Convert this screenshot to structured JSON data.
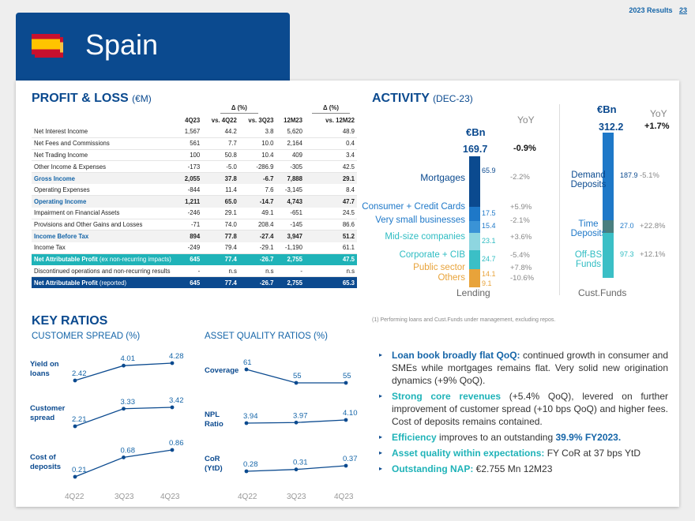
{
  "header": {
    "report": "2023 Results",
    "page": "23"
  },
  "title": "Spain",
  "colors": {
    "dark_blue": "#0b4a8f",
    "teal": "#1fb3b8",
    "mid_blue": "#1565a8",
    "light_blue": "#1e78c8",
    "orange": "#e8a33a"
  },
  "pl": {
    "title": "PROFIT & LOSS",
    "unit": "(€M)",
    "delta_labels": [
      "Δ (%)",
      "Δ (%)"
    ],
    "columns": [
      "4Q23",
      "vs. 4Q22",
      "vs. 3Q23",
      "12M23",
      "vs. 12M22"
    ],
    "rows": [
      {
        "label": "Net Interest Income",
        "v": [
          "1,567",
          "44.2",
          "3.8",
          "5,620",
          "48.9"
        ],
        "style": "row"
      },
      {
        "label": "Net Fees and Commissions",
        "v": [
          "561",
          "7.7",
          "10.0",
          "2,164",
          "0.4"
        ],
        "style": "row"
      },
      {
        "label": "Net Trading Income",
        "v": [
          "100",
          "50.8",
          "10.4",
          "409",
          "3.4"
        ],
        "style": "row"
      },
      {
        "label": "Other Income & Expenses",
        "v": [
          "-173",
          "-5.0",
          "-286.9",
          "-305",
          "42.5"
        ],
        "style": "row"
      },
      {
        "label": "Gross Income",
        "v": [
          "2,055",
          "37.8",
          "-6.7",
          "7,888",
          "29.1"
        ],
        "style": "bold"
      },
      {
        "label": "Operating Expenses",
        "v": [
          "-844",
          "11.4",
          "7.6",
          "-3,145",
          "8.4"
        ],
        "style": "row"
      },
      {
        "label": "Operating Income",
        "v": [
          "1,211",
          "65.0",
          "-14.7",
          "4,743",
          "47.7"
        ],
        "style": "bold"
      },
      {
        "label": "Impairment on Financial Assets",
        "v": [
          "-246",
          "29.1",
          "49.1",
          "-651",
          "24.5"
        ],
        "style": "row"
      },
      {
        "label": "Provisions and Other Gains and Losses",
        "v": [
          "-71",
          "74.0",
          "208.4",
          "-145",
          "86.6"
        ],
        "style": "row"
      },
      {
        "label": "Income Before Tax",
        "v": [
          "894",
          "77.8",
          "-27.4",
          "3,947",
          "51.2"
        ],
        "style": "bold"
      },
      {
        "label": "Income Tax",
        "v": [
          "-249",
          "79.4",
          "-29.1",
          "-1,190",
          "61.1"
        ],
        "style": "row"
      },
      {
        "label": "Net Attributable Profit",
        "note": "(ex non-recurring impacts)",
        "v": [
          "645",
          "77.4",
          "-26.7",
          "2,755",
          "47.5"
        ],
        "style": "teal"
      },
      {
        "label": "Discontinued operations and non-recurring results",
        "v": [
          "-",
          "n.s",
          "n.s",
          "-",
          "n.s"
        ],
        "style": "row"
      },
      {
        "label": "Net Attributable Profit",
        "note": "(reported)",
        "v": [
          "645",
          "77.4",
          "-26.7",
          "2,755",
          "65.3"
        ],
        "style": "blue"
      }
    ]
  },
  "activity": {
    "title": "ACTIVITY",
    "sub": "(DEC-23)",
    "lending": {
      "unit": "€Bn",
      "yoy_label": "YoY",
      "total": "169.7",
      "total_yoy": "-0.9%",
      "caption": "Lending",
      "caption_sup": "1",
      "segments": [
        {
          "label": "Mortgages",
          "value": "65.9",
          "yoy": "-2.2%"
        },
        {
          "label": "Consumer + Credit Cards",
          "value": "17.5",
          "yoy": "+5.9%"
        },
        {
          "label": "Very small businesses",
          "value": "15.4",
          "yoy": "-2.1%"
        },
        {
          "label": "Mid-size companies",
          "value": "23.1",
          "yoy": "+3.6%"
        },
        {
          "label": "Corporate + CIB",
          "value": "24.7",
          "yoy": "-5.4%"
        },
        {
          "label": "Public sector",
          "value": "14.1",
          "yoy": "+7.8%"
        },
        {
          "label": "Others",
          "value": "9.1",
          "yoy": "-10.6%"
        }
      ]
    },
    "funds": {
      "unit": "€Bn",
      "yoy_label": "YoY",
      "total": "312.2",
      "total_yoy": "+1.7%",
      "caption": "Cust.Funds",
      "caption_sup": "1",
      "segments": [
        {
          "label": "Demand Deposits",
          "value": "187.9",
          "yoy": "-5.1%"
        },
        {
          "label": "Time Deposits",
          "value": "27.0",
          "yoy": "+22.8%"
        },
        {
          "label": "Off-BS Funds",
          "value": "97.3",
          "yoy": "+12.1%"
        }
      ]
    },
    "footnote": "(1) Performing loans and Cust.Funds under management, excluding repos."
  },
  "ratios": {
    "title": "KEY RATIOS",
    "spread_title": "CUSTOMER SPREAD (%)",
    "quality_title": "ASSET QUALITY RATIOS (%)",
    "quarters": [
      "4Q22",
      "3Q23",
      "4Q23"
    ]
  },
  "chart_data": [
    {
      "type": "line",
      "title": "Yield on loans",
      "x": [
        "4Q22",
        "3Q23",
        "4Q23"
      ],
      "values": [
        2.42,
        4.01,
        4.28
      ],
      "labels": [
        "2.42",
        "4.01",
        "4.28"
      ]
    },
    {
      "type": "line",
      "title": "Customer spread",
      "x": [
        "4Q22",
        "3Q23",
        "4Q23"
      ],
      "values": [
        2.21,
        3.33,
        3.42
      ],
      "labels": [
        "2.21",
        "3.33",
        "3.42"
      ]
    },
    {
      "type": "line",
      "title": "Cost of deposits",
      "x": [
        "4Q22",
        "3Q23",
        "4Q23"
      ],
      "values": [
        0.21,
        0.68,
        0.86
      ],
      "labels": [
        "0.21",
        "0.68",
        "0.86"
      ]
    },
    {
      "type": "line",
      "title": "Coverage",
      "x": [
        "4Q22",
        "3Q23",
        "4Q23"
      ],
      "values": [
        61,
        55,
        55
      ],
      "labels": [
        "61",
        "55",
        "55"
      ]
    },
    {
      "type": "line",
      "title": "NPL Ratio",
      "x": [
        "4Q22",
        "3Q23",
        "4Q23"
      ],
      "values": [
        3.94,
        3.97,
        4.1
      ],
      "labels": [
        "3.94",
        "3.97",
        "4.10"
      ]
    },
    {
      "type": "line",
      "title": "CoR (YtD)",
      "x": [
        "4Q22",
        "3Q23",
        "4Q23"
      ],
      "values": [
        0.28,
        0.31,
        0.37
      ],
      "labels": [
        "0.28",
        "0.31",
        "0.37"
      ]
    }
  ],
  "bullets": [
    {
      "hl": "Loan book broadly flat QoQ:",
      "text": " continued growth in consumer and SMEs while mortgages remains flat. Very solid new origination dynamics (+9% QoQ)."
    },
    {
      "hl": "Strong core revenues",
      "text": " (+5.4% QoQ), levered on further improvement of customer spread (+10 bps QoQ) and higher fees. Cost of deposits remains contained."
    },
    {
      "hl": "Efficiency",
      "text": " improves to an outstanding ",
      "hl2": "39.9% FY2023."
    },
    {
      "hl": "Asset quality within expectations:",
      "text": " FY CoR at 37 bps YtD"
    },
    {
      "hl": "Outstanding NAP:",
      "text": " €2.755 Mn 12M23"
    }
  ]
}
